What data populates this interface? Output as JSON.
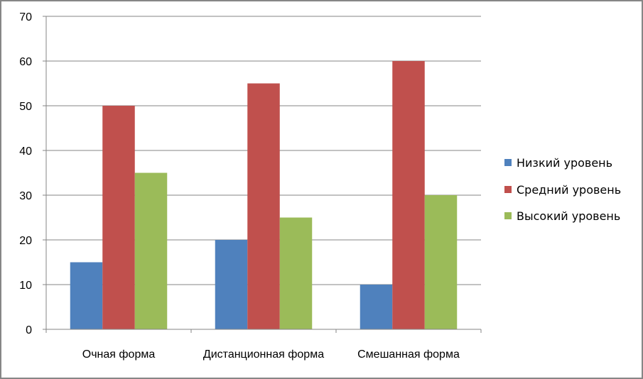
{
  "chart_data": {
    "type": "bar",
    "title": "",
    "xlabel": "",
    "ylabel": "",
    "categories": [
      "Очная форма",
      "Дистанционная форма",
      "Смешанная форма"
    ],
    "series": [
      {
        "name": "Низкий уровень",
        "color": "#4F81BD",
        "values": [
          15,
          20,
          10
        ]
      },
      {
        "name": "Средний уровень",
        "color": "#C0504D",
        "values": [
          50,
          55,
          60
        ]
      },
      {
        "name": "Высокий уровень",
        "color": "#9BBB59",
        "values": [
          35,
          25,
          30
        ]
      }
    ],
    "ylim": [
      0,
      70
    ],
    "yticks": [
      0,
      10,
      20,
      30,
      40,
      50,
      60,
      70
    ],
    "grid": true,
    "legend_position": "right"
  }
}
